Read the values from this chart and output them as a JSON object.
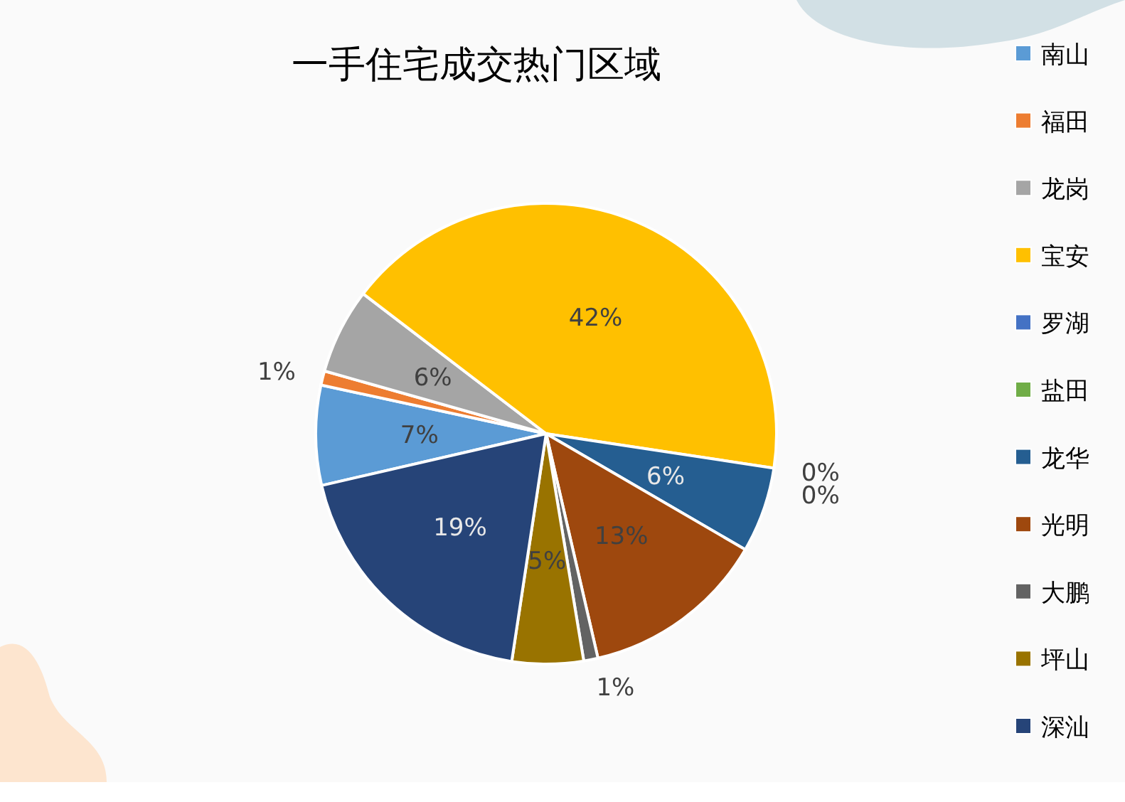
{
  "chart_data": {
    "type": "pie",
    "title": "一手住宅成交热门区域",
    "categories": [
      "南山",
      "福田",
      "龙岗",
      "宝安",
      "罗湖",
      "盐田",
      "龙华",
      "光明",
      "大鹏",
      "坪山",
      "深汕"
    ],
    "values": [
      7,
      1,
      6,
      42,
      0,
      0,
      6,
      13,
      1,
      5,
      19
    ],
    "colors": [
      "#5b9bd5",
      "#ed7d31",
      "#a5a5a5",
      "#ffc000",
      "#4472c4",
      "#70ad47",
      "#255e91",
      "#9e480e",
      "#636363",
      "#997300",
      "#264478"
    ],
    "value_labels": [
      "7%",
      "1%",
      "6%",
      "42%",
      "0%",
      "0%",
      "6%",
      "13%",
      "1%",
      "5%",
      "19%"
    ],
    "legend": "right"
  }
}
